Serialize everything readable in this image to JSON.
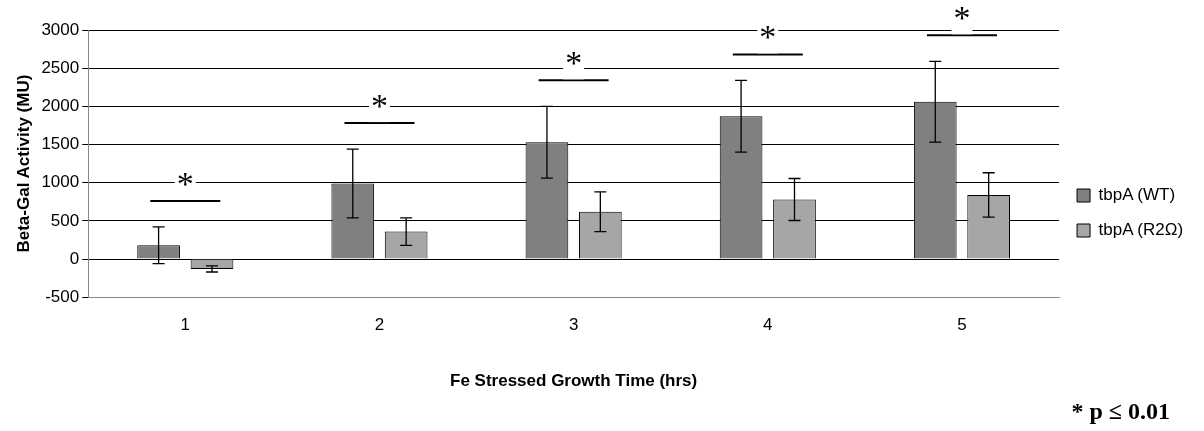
{
  "chart_data": {
    "type": "bar",
    "xlabel": "Fe Stressed Growth Time (hrs)",
    "ylabel": "Beta-Gal Activity (MU)",
    "categories": [
      "1",
      "2",
      "3",
      "4",
      "5"
    ],
    "series": [
      {
        "name": "tbpA (WT)",
        "color": "#808080",
        "values": [
          180,
          990,
          1530,
          1870,
          2060
        ],
        "errors": [
          240,
          450,
          470,
          470,
          530
        ]
      },
      {
        "name": "tbpA (R2Ω)",
        "color": "#a6a6a6",
        "values": [
          -130,
          360,
          620,
          780,
          840
        ],
        "errors": [
          40,
          180,
          260,
          275,
          290
        ]
      }
    ],
    "ylim": [
      -500,
      3000
    ],
    "yticks": [
      -500,
      0,
      500,
      1000,
      1500,
      2000,
      2500,
      3000
    ],
    "grid": "y",
    "legend": "right",
    "annotations": [
      "*",
      "*",
      "*",
      "*",
      "*",
      "* p ≤ 0.01"
    ]
  }
}
